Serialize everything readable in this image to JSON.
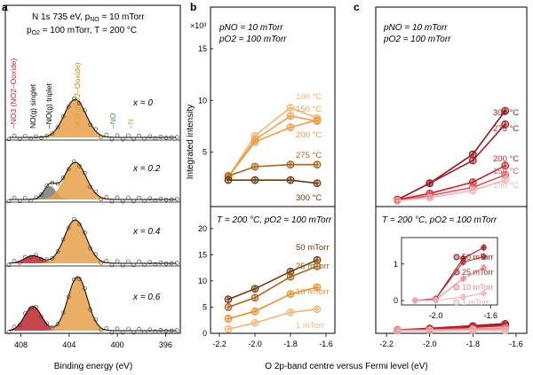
{
  "panel_labels": {
    "a": "a",
    "b": "b",
    "c": "c"
  },
  "colors": {
    "orange": "#e8a04a",
    "orange_light": "#f2b878",
    "brown_dark": "#6b3a12",
    "brown": "#8a5416",
    "brown_mid": "#a8661e",
    "red_dark": "#8e1a1f",
    "red": "#c0272d",
    "red_light": "#e88a8e",
    "pink": "#f0b4b8",
    "green": "#5c8a5c",
    "gold": "#c8a040"
  },
  "panel_a": {
    "header_line1": "N 1s 735 eV, p",
    "header_line1_sub": "NO",
    "header_line1_rest": " = 10 mTorr",
    "header_line2": "p",
    "header_line2_sub": "O2",
    "header_line2_rest": " = 100 mTorr, T = 200 °C",
    "peak_labels": [
      {
        "text": "–NO3 (NO2–Ooxide)",
        "color": "#c0272d"
      },
      {
        "text": "NO(g) singlet",
        "color": "#000000"
      },
      {
        "text": "–NO(g) triplet",
        "color": "#000000"
      },
      {
        "text": "NO2 (NO2–Ooxide)",
        "color": "#c8880a"
      },
      {
        "text": "–NO",
        "color": "#5c8a5c"
      },
      {
        "text": "–N",
        "color": "#c8a040"
      }
    ],
    "spectra_labels": [
      "x = 0",
      "x = 0.2",
      "x = 0.4",
      "x = 0.6"
    ],
    "xlabel": "Binding energy (eV)",
    "xticks": [
      "408",
      "404",
      "400",
      "396"
    ]
  },
  "panel_b": {
    "ylabel": "Integrated intensity",
    "xlabel": "O 2p-band centre versus Fermi level (eV)",
    "y_multiplier": "×10³",
    "top_annotation_1": "pNO = 10 mTorr",
    "top_annotation_2": "pO2 = 100 mTorr",
    "bottom_annotation": "T = 200 °C, pO2 = 100 mTorr"
  },
  "panel_c": {
    "top_annotation_1": "pNO = 10 mTorr",
    "top_annotation_2": "pO2 = 100 mTorr",
    "bottom_annotation": "T = 200 °C, pO2 = 100 mTorr"
  },
  "chart_data": [
    {
      "type": "line",
      "title": "",
      "xlabel": "Binding energy (eV)",
      "ylabel": "",
      "xlim": [
        409,
        395
      ],
      "x_reversed": true,
      "series": [
        {
          "name": "x = 0",
          "peaks": [
            {
              "center": 403.5,
              "width": 0.9,
              "height": 0.55
            }
          ]
        },
        {
          "name": "x = 0.2",
          "peaks": [
            {
              "center": 405.6,
              "width": 0.5,
              "height": 0.22
            },
            {
              "center": 403.5,
              "width": 0.9,
              "height": 0.6
            }
          ]
        },
        {
          "name": "x = 0.4",
          "peaks": [
            {
              "center": 407,
              "width": 0.7,
              "height": 0.12
            },
            {
              "center": 403.5,
              "width": 0.9,
              "height": 0.68
            }
          ]
        },
        {
          "name": "x = 0.6",
          "peaks": [
            {
              "center": 407,
              "width": 0.7,
              "height": 0.36
            },
            {
              "center": 403.3,
              "width": 0.8,
              "height": 0.8
            }
          ]
        }
      ]
    },
    {
      "type": "line",
      "title": "",
      "xlabel": "O 2p-band centre versus Fermi level (eV)",
      "ylabel": "Integrated intensity",
      "x": [
        -2.15,
        -2.0,
        -1.8,
        -1.65
      ],
      "ylim": [
        0,
        15
      ],
      "yticks": [
        5,
        10,
        15
      ],
      "series": [
        {
          "name": "100 °C",
          "values": [
            2.6,
            6.6,
            9.3,
            8.3
          ]
        },
        {
          "name": "150 °C",
          "values": [
            2.6,
            6.2,
            8.5,
            8.0
          ]
        },
        {
          "name": "200 °C",
          "values": [
            2.6,
            6.0,
            7.4,
            8.1
          ]
        },
        {
          "name": "275 °C",
          "values": [
            2.7,
            3.6,
            3.8,
            3.8
          ]
        },
        {
          "name": "300 °C",
          "values": [
            2.3,
            2.3,
            2.3,
            2.0
          ]
        }
      ]
    },
    {
      "type": "line",
      "title": "",
      "xlabel": "O 2p-band centre versus Fermi level (eV)",
      "ylabel": "Integrated intensity",
      "x": [
        -2.15,
        -2.0,
        -1.8,
        -1.65
      ],
      "xticks": [
        "-2.2",
        "-2.0",
        "-1.8",
        "-1.6"
      ],
      "ylim": [
        0,
        22
      ],
      "yticks": [
        0,
        5,
        10,
        15,
        20
      ],
      "series": [
        {
          "name": "50 mTorr",
          "values": [
            6.5,
            8.5,
            11.8,
            14.0
          ]
        },
        {
          "name": "25 mTorr",
          "values": [
            5.0,
            6.8,
            10.8,
            12.8
          ]
        },
        {
          "name": "10 mTorr",
          "values": [
            2.8,
            4.2,
            7.5,
            8.8
          ]
        },
        {
          "name": "1 mTorr",
          "values": [
            0.8,
            2.0,
            4.0,
            4.6
          ]
        }
      ]
    },
    {
      "type": "line",
      "title": "",
      "xlabel": "",
      "ylabel": "",
      "x": [
        -2.15,
        -2.0,
        -1.8,
        -1.65
      ],
      "ylim": [
        0,
        15
      ],
      "series": [
        {
          "name": "300 °C",
          "values": [
            0.4,
            2.0,
            4.8,
            9.0
          ]
        },
        {
          "name": "275 °C",
          "values": [
            0.4,
            2.0,
            4.2,
            7.7
          ]
        },
        {
          "name": "200 °C",
          "values": [
            0.4,
            1.0,
            2.1,
            3.7
          ]
        },
        {
          "name": "150 °C",
          "values": [
            0.3,
            0.8,
            1.6,
            2.8
          ]
        },
        {
          "name": "100 °C",
          "values": [
            0.3,
            0.6,
            1.3,
            2.3
          ]
        }
      ]
    },
    {
      "type": "line",
      "title": "",
      "xlabel": "",
      "ylabel": "",
      "x": [
        -2.15,
        -2.0,
        -1.8,
        -1.65
      ],
      "xticks": [
        "-2.2",
        "-2.0",
        "-1.8",
        "-1.6"
      ],
      "ylim": [
        0,
        22
      ],
      "series": [
        {
          "name": "50 mTorr",
          "values": [
            0.6,
            0.9,
            1.4,
            1.8
          ]
        },
        {
          "name": "25 mTorr",
          "values": [
            0.6,
            0.8,
            1.2,
            1.5
          ]
        },
        {
          "name": "10 mTorr",
          "values": [
            0.5,
            0.6,
            0.8,
            1.0
          ]
        },
        {
          "name": "1 mTorr",
          "values": [
            0.5,
            0.5,
            0.6,
            0.6
          ]
        }
      ]
    },
    {
      "type": "line",
      "title": "",
      "xlabel": "",
      "ylabel": "",
      "x": [
        -2.15,
        -2.0,
        -1.8,
        -1.65
      ],
      "xticks": [
        "-2.0",
        "-1.6"
      ],
      "ylim": [
        0,
        1.6
      ],
      "yticks": [
        0,
        1
      ],
      "series": [
        {
          "name": "50 mTorr",
          "values": [
            0.0,
            0.05,
            1.15,
            1.45
          ]
        },
        {
          "name": "25 mTorr",
          "values": [
            0.0,
            0.05,
            1.05,
            1.2
          ]
        },
        {
          "name": "10 mTorr",
          "values": [
            0.0,
            0.03,
            0.6,
            0.9
          ]
        },
        {
          "name": "1 mTorr",
          "values": [
            0.0,
            0.0,
            0.1,
            0.2
          ]
        }
      ]
    }
  ]
}
